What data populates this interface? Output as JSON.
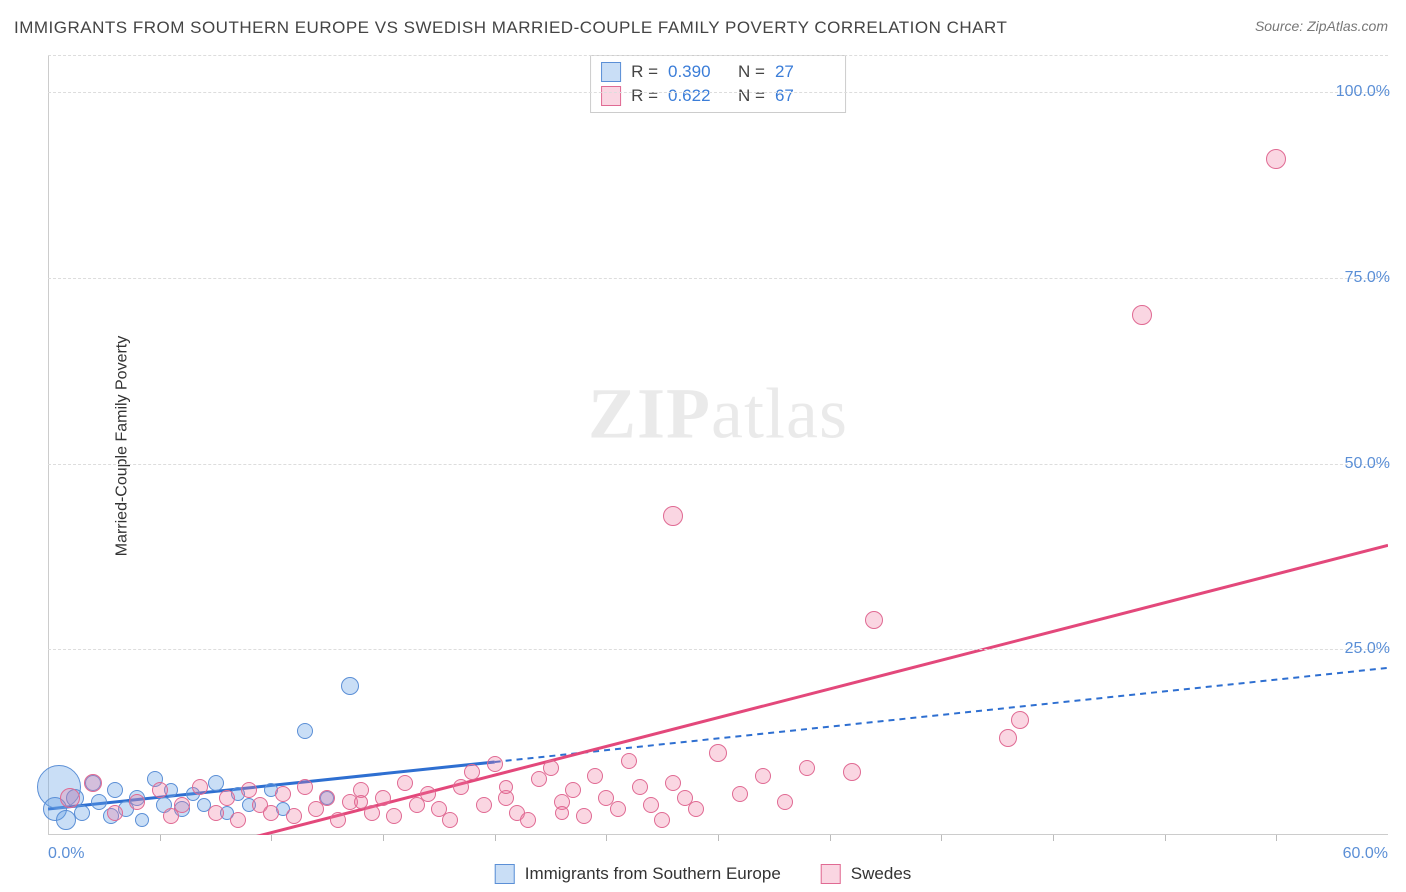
{
  "title": "IMMIGRANTS FROM SOUTHERN EUROPE VS SWEDISH MARRIED-COUPLE FAMILY POVERTY CORRELATION CHART",
  "source": "Source: ZipAtlas.com",
  "ylabel": "Married-Couple Family Poverty",
  "watermark_bold": "ZIP",
  "watermark_light": "atlas",
  "chart": {
    "type": "scatter",
    "xlim": [
      0,
      60
    ],
    "ylim": [
      0,
      105
    ],
    "x_first_label": "0.0%",
    "x_last_label": "60.0%",
    "y_ticks": [
      25,
      50,
      75,
      100
    ],
    "y_tick_labels": [
      "25.0%",
      "50.0%",
      "75.0%",
      "100.0%"
    ],
    "x_minor_ticks": [
      5,
      10,
      15,
      20,
      25,
      30,
      35,
      40,
      45,
      50,
      55
    ],
    "grid_color": "#dddddd",
    "background_color": "#ffffff",
    "series": [
      {
        "name": "Immigrants from Southern Europe",
        "color_fill": "rgba(100,160,230,0.35)",
        "color_stroke": "#5b8fd6",
        "line_color": "#2e6fd1",
        "line_solid_until_x": 20,
        "line_dash": "6,5",
        "r_value": "0.390",
        "n_value": "27",
        "trend": {
          "x1": 0,
          "y1": 3.5,
          "x2": 60,
          "y2": 22.5
        },
        "points": [
          {
            "x": 0.5,
            "y": 6.5,
            "r": 22
          },
          {
            "x": 0.3,
            "y": 3.5,
            "r": 12
          },
          {
            "x": 0.8,
            "y": 2.0,
            "r": 10
          },
          {
            "x": 1.2,
            "y": 5.0,
            "r": 9
          },
          {
            "x": 1.5,
            "y": 3.0,
            "r": 8
          },
          {
            "x": 2.0,
            "y": 7.0,
            "r": 8
          },
          {
            "x": 2.3,
            "y": 4.5,
            "r": 8
          },
          {
            "x": 2.8,
            "y": 2.5,
            "r": 8
          },
          {
            "x": 3.0,
            "y": 6.0,
            "r": 8
          },
          {
            "x": 3.5,
            "y": 3.5,
            "r": 8
          },
          {
            "x": 4.0,
            "y": 5.0,
            "r": 8
          },
          {
            "x": 4.2,
            "y": 2.0,
            "r": 7
          },
          {
            "x": 4.8,
            "y": 7.5,
            "r": 8
          },
          {
            "x": 5.2,
            "y": 4.0,
            "r": 8
          },
          {
            "x": 5.5,
            "y": 6.0,
            "r": 7
          },
          {
            "x": 6.0,
            "y": 3.5,
            "r": 8
          },
          {
            "x": 6.5,
            "y": 5.5,
            "r": 7
          },
          {
            "x": 7.0,
            "y": 4.0,
            "r": 7
          },
          {
            "x": 7.5,
            "y": 7.0,
            "r": 8
          },
          {
            "x": 8.0,
            "y": 3.0,
            "r": 7
          },
          {
            "x": 8.5,
            "y": 5.5,
            "r": 7
          },
          {
            "x": 9.0,
            "y": 4.0,
            "r": 7
          },
          {
            "x": 10.0,
            "y": 6.0,
            "r": 7
          },
          {
            "x": 10.5,
            "y": 3.5,
            "r": 7
          },
          {
            "x": 11.5,
            "y": 14.0,
            "r": 8
          },
          {
            "x": 12.5,
            "y": 5.0,
            "r": 7
          },
          {
            "x": 13.5,
            "y": 20.0,
            "r": 9
          }
        ]
      },
      {
        "name": "Swedes",
        "color_fill": "rgba(240,120,160,0.3)",
        "color_stroke": "#e06a93",
        "line_color": "#e3487b",
        "line_solid_until_x": 60,
        "line_dash": "",
        "r_value": "0.622",
        "n_value": "67",
        "trend": {
          "x1": 7,
          "y1": -2,
          "x2": 60,
          "y2": 39
        },
        "points": [
          {
            "x": 1.0,
            "y": 5.0,
            "r": 10
          },
          {
            "x": 2.0,
            "y": 7.0,
            "r": 9
          },
          {
            "x": 3.0,
            "y": 3.0,
            "r": 8
          },
          {
            "x": 4.0,
            "y": 4.5,
            "r": 8
          },
          {
            "x": 5.0,
            "y": 6.0,
            "r": 8
          },
          {
            "x": 5.5,
            "y": 2.5,
            "r": 8
          },
          {
            "x": 6.0,
            "y": 4.0,
            "r": 8
          },
          {
            "x": 6.8,
            "y": 6.5,
            "r": 8
          },
          {
            "x": 7.5,
            "y": 3.0,
            "r": 8
          },
          {
            "x": 8.0,
            "y": 5.0,
            "r": 8
          },
          {
            "x": 8.5,
            "y": 2.0,
            "r": 8
          },
          {
            "x": 9.0,
            "y": 6.0,
            "r": 8
          },
          {
            "x": 9.5,
            "y": 4.0,
            "r": 8
          },
          {
            "x": 10.0,
            "y": 3.0,
            "r": 8
          },
          {
            "x": 10.5,
            "y": 5.5,
            "r": 8
          },
          {
            "x": 11.0,
            "y": 2.5,
            "r": 8
          },
          {
            "x": 11.5,
            "y": 6.5,
            "r": 8
          },
          {
            "x": 12.0,
            "y": 3.5,
            "r": 8
          },
          {
            "x": 12.5,
            "y": 5.0,
            "r": 8
          },
          {
            "x": 13.0,
            "y": 2.0,
            "r": 8
          },
          {
            "x": 13.5,
            "y": 4.5,
            "r": 8
          },
          {
            "x": 14.0,
            "y": 6.0,
            "r": 8
          },
          {
            "x": 14.5,
            "y": 3.0,
            "r": 8
          },
          {
            "x": 15.0,
            "y": 5.0,
            "r": 8
          },
          {
            "x": 15.5,
            "y": 2.5,
            "r": 8
          },
          {
            "x": 16.0,
            "y": 7.0,
            "r": 8
          },
          {
            "x": 16.5,
            "y": 4.0,
            "r": 8
          },
          {
            "x": 17.0,
            "y": 5.5,
            "r": 8
          },
          {
            "x": 17.5,
            "y": 3.5,
            "r": 8
          },
          {
            "x": 18.0,
            "y": 2.0,
            "r": 8
          },
          {
            "x": 18.5,
            "y": 6.5,
            "r": 8
          },
          {
            "x": 19.0,
            "y": 8.5,
            "r": 8
          },
          {
            "x": 19.5,
            "y": 4.0,
            "r": 8
          },
          {
            "x": 20.0,
            "y": 9.5,
            "r": 8
          },
          {
            "x": 20.5,
            "y": 5.0,
            "r": 8
          },
          {
            "x": 21.0,
            "y": 3.0,
            "r": 8
          },
          {
            "x": 21.5,
            "y": 2.0,
            "r": 8
          },
          {
            "x": 22.0,
            "y": 7.5,
            "r": 8
          },
          {
            "x": 22.5,
            "y": 9.0,
            "r": 8
          },
          {
            "x": 23.0,
            "y": 4.5,
            "r": 8
          },
          {
            "x": 23.5,
            "y": 6.0,
            "r": 8
          },
          {
            "x": 24.0,
            "y": 2.5,
            "r": 8
          },
          {
            "x": 24.5,
            "y": 8.0,
            "r": 8
          },
          {
            "x": 25.0,
            "y": 5.0,
            "r": 8
          },
          {
            "x": 25.5,
            "y": 3.5,
            "r": 8
          },
          {
            "x": 26.0,
            "y": 10.0,
            "r": 8
          },
          {
            "x": 26.5,
            "y": 6.5,
            "r": 8
          },
          {
            "x": 27.0,
            "y": 4.0,
            "r": 8
          },
          {
            "x": 27.5,
            "y": 2.0,
            "r": 8
          },
          {
            "x": 28.0,
            "y": 7.0,
            "r": 8
          },
          {
            "x": 28.5,
            "y": 5.0,
            "r": 8
          },
          {
            "x": 29.0,
            "y": 3.5,
            "r": 8
          },
          {
            "x": 30.0,
            "y": 11.0,
            "r": 9
          },
          {
            "x": 31.0,
            "y": 5.5,
            "r": 8
          },
          {
            "x": 32.0,
            "y": 8.0,
            "r": 8
          },
          {
            "x": 33.0,
            "y": 4.5,
            "r": 8
          },
          {
            "x": 34.0,
            "y": 9.0,
            "r": 8
          },
          {
            "x": 36.0,
            "y": 8.5,
            "r": 9
          },
          {
            "x": 37.0,
            "y": 29.0,
            "r": 9
          },
          {
            "x": 43.0,
            "y": 13.0,
            "r": 9
          },
          {
            "x": 43.5,
            "y": 15.5,
            "r": 9
          },
          {
            "x": 49.0,
            "y": 70.0,
            "r": 10
          },
          {
            "x": 55.0,
            "y": 91.0,
            "r": 10
          },
          {
            "x": 28.0,
            "y": 43.0,
            "r": 10
          },
          {
            "x": 14.0,
            "y": 4.5,
            "r": 7
          },
          {
            "x": 20.5,
            "y": 6.5,
            "r": 7
          },
          {
            "x": 23.0,
            "y": 3.0,
            "r": 7
          }
        ]
      }
    ],
    "legend_bottom": [
      {
        "label": "Immigrants from Southern Europe",
        "fill": "rgba(100,160,230,0.35)",
        "stroke": "#5b8fd6"
      },
      {
        "label": "Swedes",
        "fill": "rgba(240,120,160,0.3)",
        "stroke": "#e06a93"
      }
    ]
  }
}
